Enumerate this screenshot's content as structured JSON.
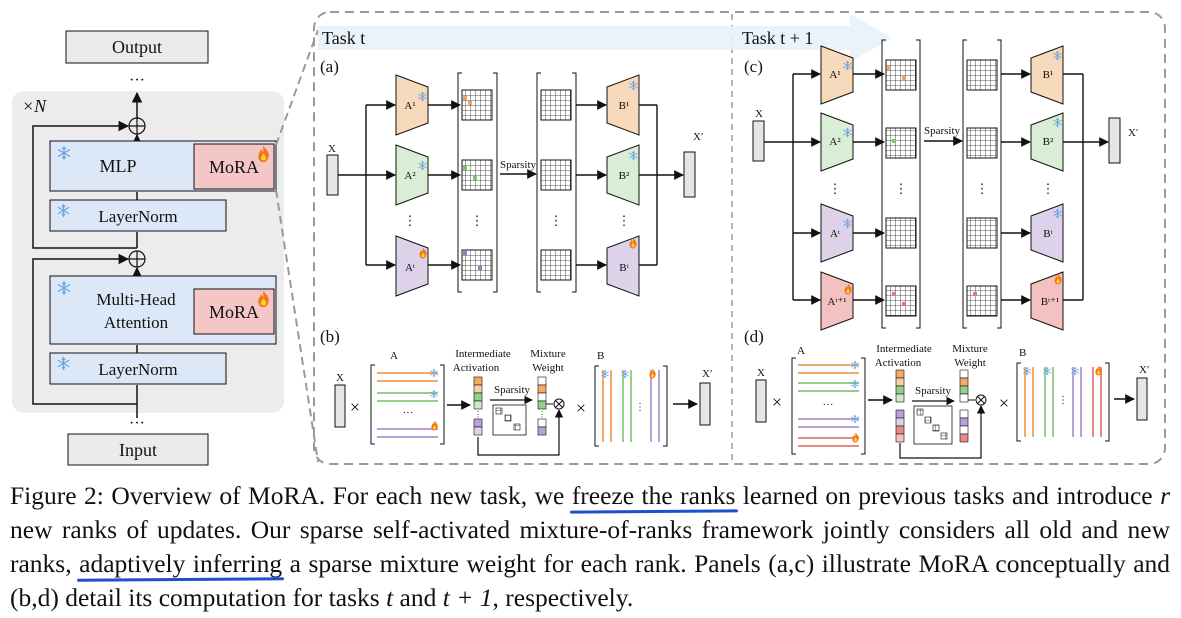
{
  "architecture": {
    "output_label": "Output",
    "input_label": "Input",
    "repeat_label": "×N",
    "ellipsis": "···",
    "mlp_label": "MLP",
    "mora_label": "MoRA",
    "layernorm_label": "LayerNorm",
    "mha_line1": "Multi-Head",
    "mha_line2": "Attention"
  },
  "task_t": {
    "header": "Task t",
    "panel_a": "(a)",
    "panel_b": "(b)",
    "x_label": "X",
    "x_out_label": "X′",
    "a_labels": [
      "A¹",
      "A²",
      "Aᵗ"
    ],
    "b_labels": [
      "B¹",
      "B²",
      "Bᵗ"
    ],
    "sparsity_label": "Sparsity",
    "vdots": "⋮"
  },
  "task_t1": {
    "header": "Task t + 1",
    "panel_c": "(c)",
    "panel_d": "(d)",
    "x_label": "X",
    "x_out_label": "X′",
    "a_labels": [
      "A¹",
      "A²",
      "Aᵗ",
      "Aᵗ⁺¹"
    ],
    "b_labels": [
      "B¹",
      "B²",
      "Bᵗ",
      "Bᵗ⁺¹"
    ],
    "sparsity_label": "Sparsity",
    "vdots": "⋮"
  },
  "computation": {
    "a_label": "A",
    "b_label": "B",
    "intermediate_line1": "Intermediate",
    "intermediate_line2": "Activation",
    "mixture_line1": "Mixture",
    "mixture_line2": "Weight",
    "sparsity_label": "Sparsity",
    "times": "×",
    "otimes": "⊗",
    "hdots": "···"
  },
  "caption": {
    "p1": "Figure 2: Overview of MoRA. For each new task, we ",
    "u1": "freeze the ranks",
    "p2": " learned on previous tasks and introduce ",
    "r": "r",
    "p3": " new ranks of updates. Our sparse self-activated mixture-of-ranks framework jointly considers all old and new ranks, ",
    "u2": "adaptively inferring",
    "p4": " a sparse mixture weight for each rank. Panels (a,c) illustrate MoRA conceptually and (b,d) detail its computation for tasks ",
    "t": "t",
    "p5": " and ",
    "t1": "t + 1",
    "p6": ", respectively."
  },
  "colors": {
    "block_blue": "#dce8f8",
    "mora_red": "#f4c6c6",
    "orange": "#f7d9bc",
    "green": "#d9eed4",
    "purple": "#ddd2ea",
    "red": "#f4c1c1",
    "underline": "#1f4fd1"
  }
}
